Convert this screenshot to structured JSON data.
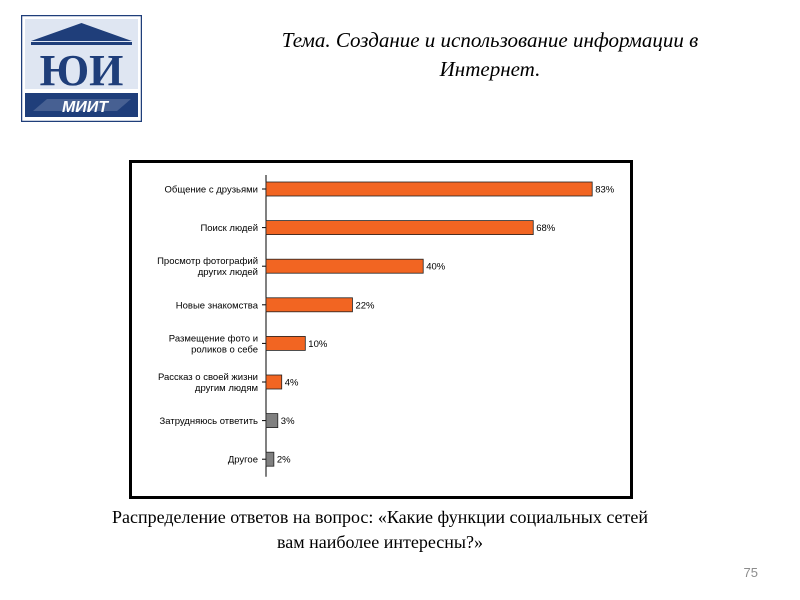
{
  "slide": {
    "title_line1": "Тема. Создание и использование информации в",
    "title_line2": "Интернет.",
    "caption_line1": "Распределение ответов на вопрос: «Какие функции социальных сетей",
    "caption_line2": "вам наиболее интересны?»",
    "page_number": "75"
  },
  "logo": {
    "monogram": "ЮИ",
    "wordmark": "МИИТ",
    "colors": {
      "frame": "#1f3e7a",
      "field": "#dfe6f2",
      "band": "#1f3e7a"
    }
  },
  "chart_data": {
    "type": "bar",
    "orientation": "horizontal",
    "categories": [
      [
        "Общение с друзьями"
      ],
      [
        "Поиск людей"
      ],
      [
        "Просмотр фотографий",
        "других людей"
      ],
      [
        "Новые знакомства"
      ],
      [
        "Размещение фото и",
        "роликов о себе"
      ],
      [
        "Рассказ о своей жизни",
        "другим людям"
      ],
      [
        "Затрудняюсь ответить"
      ],
      [
        "Другое"
      ]
    ],
    "values": [
      83,
      68,
      40,
      22,
      10,
      4,
      3,
      2
    ],
    "data_labels": [
      "83%",
      "68%",
      "40%",
      "22%",
      "10%",
      "4%",
      "3%",
      "2%"
    ],
    "bar_colors": [
      "#f26522",
      "#f26522",
      "#f26522",
      "#f26522",
      "#f26522",
      "#f26522",
      "#808080",
      "#808080"
    ],
    "xlim": [
      0,
      100
    ],
    "grid": false,
    "legend": "none"
  }
}
